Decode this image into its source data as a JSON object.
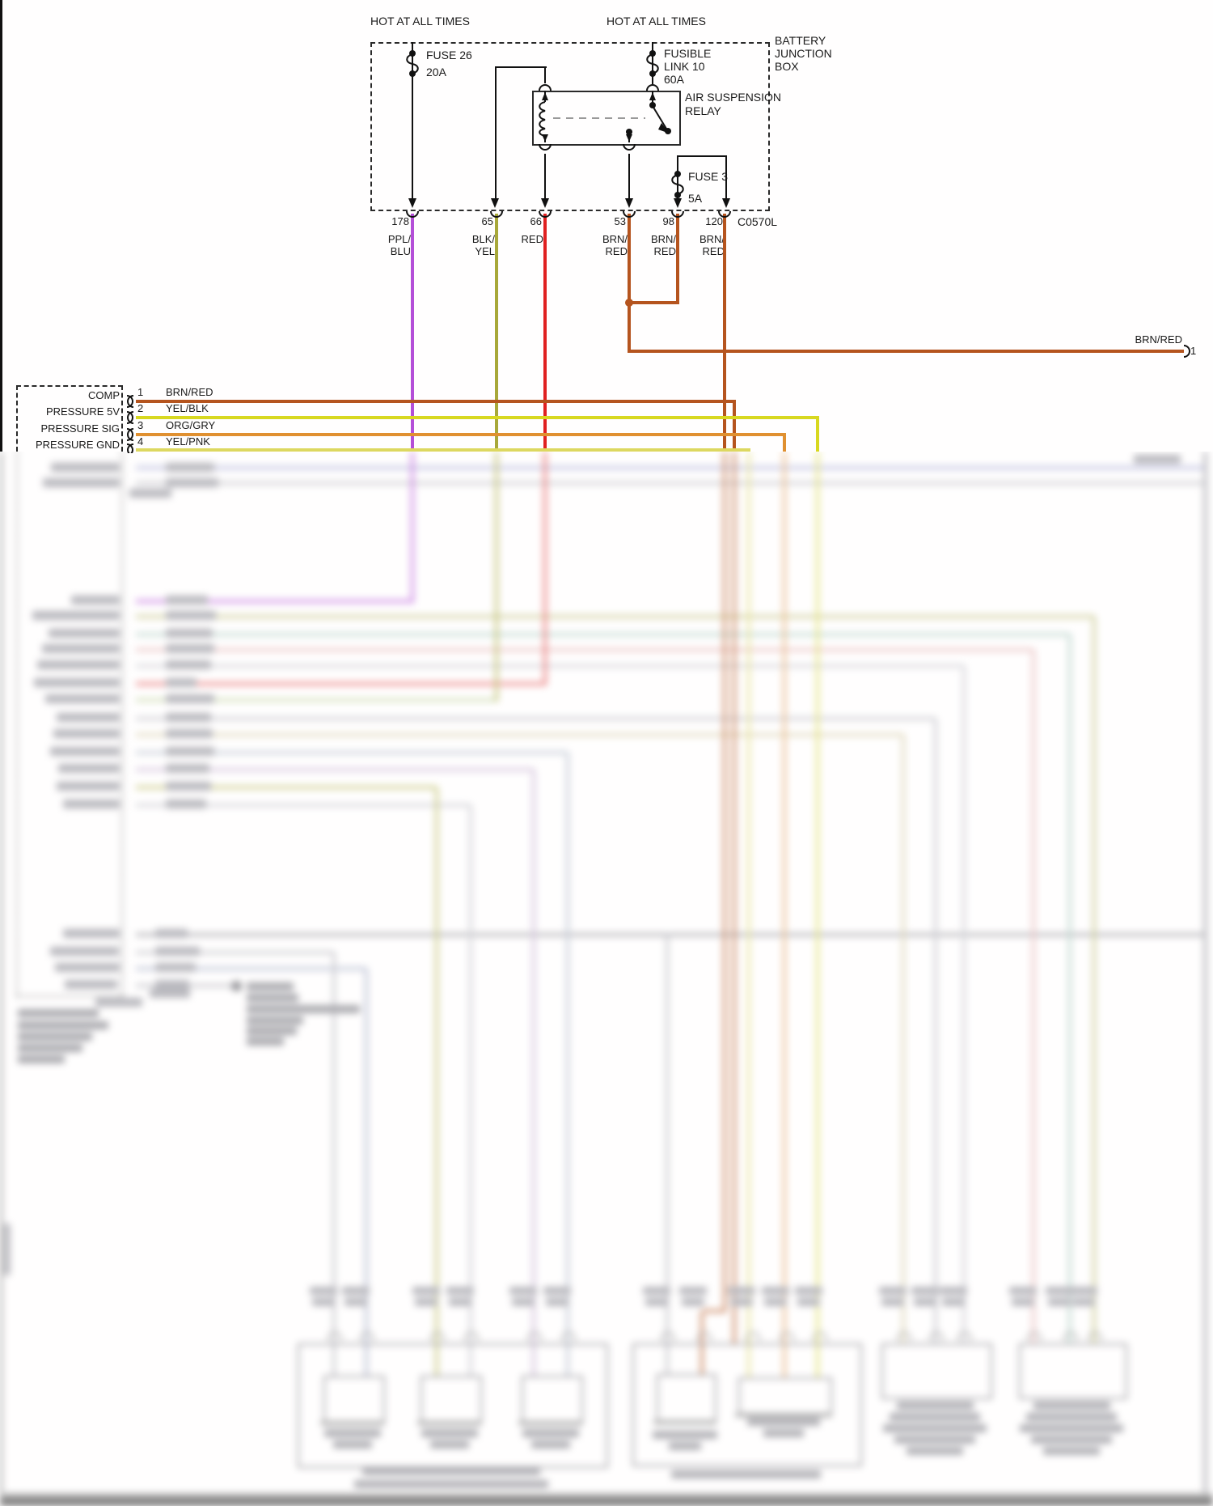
{
  "junction": {
    "hot_left": "HOT AT ALL TIMES",
    "hot_right": "HOT AT ALL TIMES",
    "box_label": [
      "BATTERY",
      "JUNCTION",
      "BOX"
    ],
    "fuse26": [
      "FUSE 26",
      "20A"
    ],
    "fusible_link": [
      "FUSIBLE",
      "LINK 10",
      "60A"
    ],
    "relay_label": [
      "AIR SUSPENSION",
      "RELAY"
    ],
    "fuse3": [
      "FUSE 3",
      "5A"
    ],
    "connector_id": "C0570L",
    "pins": [
      {
        "num": "178",
        "wire": [
          "PPL/",
          "BLU"
        ]
      },
      {
        "num": "65",
        "wire": [
          "BLK/",
          "YEL"
        ]
      },
      {
        "num": "66",
        "wire": [
          "RED",
          ""
        ]
      },
      {
        "num": "53",
        "wire": [
          "BRN/",
          "RED"
        ]
      },
      {
        "num": "98",
        "wire": [
          "BRN/",
          "RED"
        ]
      },
      {
        "num": "120",
        "wire": [
          "BRN/",
          "RED"
        ]
      }
    ]
  },
  "offpage_right": {
    "wire": "BRN/RED",
    "pin": "1"
  },
  "module": {
    "pins": [
      {
        "name": "COMP",
        "num": "1",
        "wire": "BRN/RED"
      },
      {
        "name": "PRESSURE 5V",
        "num": "2",
        "wire": "YEL/BLK"
      },
      {
        "name": "PRESSURE SIG",
        "num": "3",
        "wire": "ORG/GRY"
      },
      {
        "name": "PRESSURE GND",
        "num": "4",
        "wire": "YEL/PNK"
      }
    ]
  },
  "colors": {
    "ppl_blu": "#b44fd8",
    "blk_yel": "#a8a83a",
    "red": "#e02020",
    "brn_red": "#b5541e",
    "yel_blk": "#d8d820",
    "org_gry": "#e09030",
    "yel_pnk": "#ddd860"
  }
}
